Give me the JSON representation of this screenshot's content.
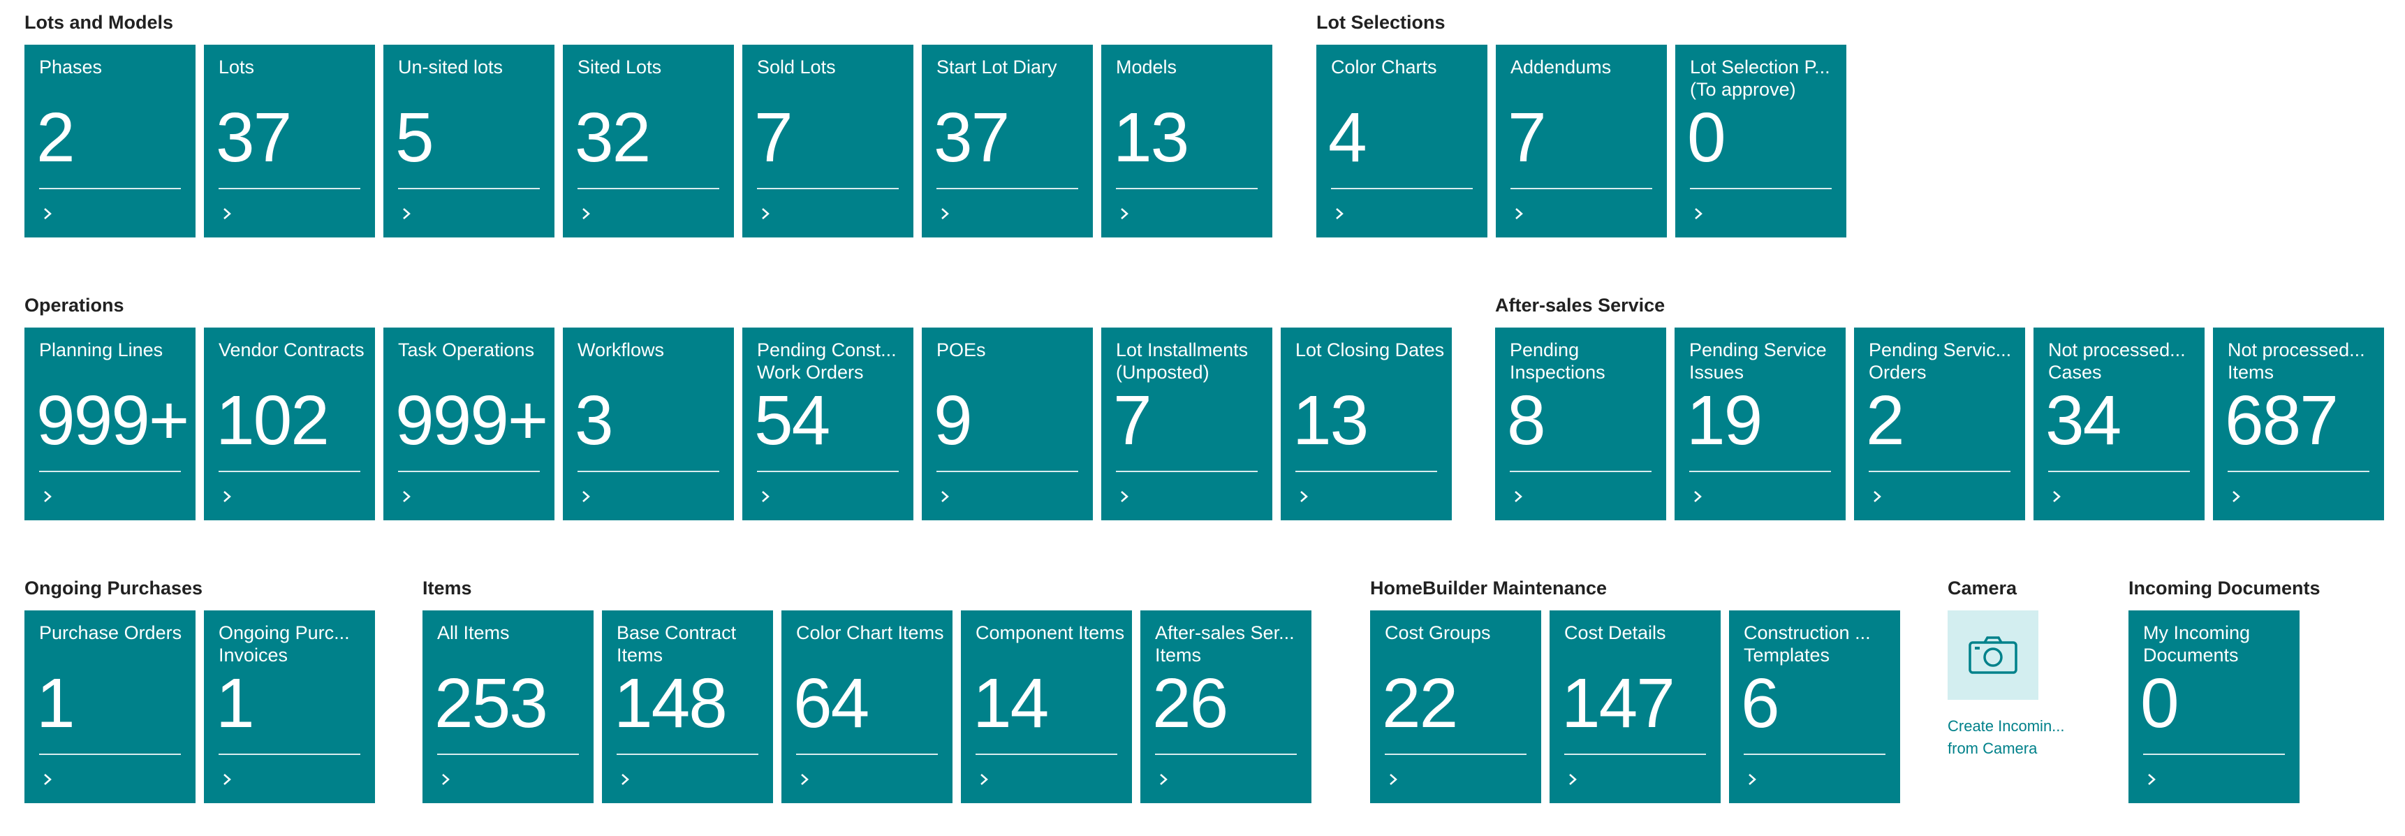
{
  "groups": [
    {
      "title": "Lots and Models",
      "tiles": [
        {
          "label": "Phases",
          "value": "2"
        },
        {
          "label": "Lots",
          "value": "37"
        },
        {
          "label": "Un-sited lots",
          "value": "5"
        },
        {
          "label": "Sited Lots",
          "value": "32"
        },
        {
          "label": "Sold Lots",
          "value": "7"
        },
        {
          "label": "Start Lot Diary",
          "value": "37"
        },
        {
          "label": "Models",
          "value": "13"
        }
      ]
    },
    {
      "title": "Lot Selections",
      "tiles": [
        {
          "label": "Color Charts",
          "value": "4"
        },
        {
          "label": "Addendums",
          "value": "7"
        },
        {
          "label": "Lot Selection P... (To approve)",
          "value": "0"
        }
      ]
    },
    {
      "title": "Operations",
      "tiles": [
        {
          "label": "Planning Lines",
          "value": "999+"
        },
        {
          "label": "Vendor Contracts",
          "value": "102"
        },
        {
          "label": "Task Operations",
          "value": "999+"
        },
        {
          "label": "Workflows",
          "value": "3"
        },
        {
          "label": "Pending Const... Work Orders",
          "value": "54"
        },
        {
          "label": "POEs",
          "value": "9"
        },
        {
          "label": "Lot Installments (Unposted)",
          "value": "7"
        },
        {
          "label": "Lot Closing Dates",
          "value": "13"
        }
      ]
    },
    {
      "title": "After-sales Service",
      "tiles": [
        {
          "label": "Pending Inspections",
          "value": "8"
        },
        {
          "label": "Pending Service Issues",
          "value": "19"
        },
        {
          "label": "Pending Servic... Orders",
          "value": "2"
        },
        {
          "label": "Not processed... Cases",
          "value": "34"
        },
        {
          "label": "Not processed... Items",
          "value": "687"
        }
      ]
    },
    {
      "title": "Ongoing Purchases",
      "tiles": [
        {
          "label": "Purchase Orders",
          "value": "1"
        },
        {
          "label": "Ongoing Purc... Invoices",
          "value": "1"
        }
      ]
    },
    {
      "title": "Items",
      "tiles": [
        {
          "label": "All Items",
          "value": "253"
        },
        {
          "label": "Base Contract Items",
          "value": "148"
        },
        {
          "label": "Color Chart Items",
          "value": "64"
        },
        {
          "label": "Component Items",
          "value": "14"
        },
        {
          "label": "After-sales Ser... Items",
          "value": "26"
        }
      ]
    },
    {
      "title": "HomeBuilder Maintenance",
      "tiles": [
        {
          "label": "Cost Groups",
          "value": "22"
        },
        {
          "label": "Cost Details",
          "value": "147"
        },
        {
          "label": "Construction ... Templates",
          "value": "6"
        }
      ]
    },
    {
      "title": "Camera",
      "action": {
        "caption_line1": "Create Incomin...",
        "caption_line2": "from Camera",
        "icon": "camera-icon"
      }
    },
    {
      "title": "Incoming Documents",
      "tiles": [
        {
          "label": "My Incoming Documents",
          "value": "0"
        }
      ]
    }
  ],
  "colors": {
    "tile": "#00818a",
    "camera_tile": "#d3eef0",
    "link": "#00818a"
  }
}
